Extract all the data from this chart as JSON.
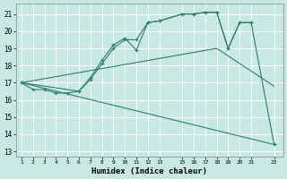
{
  "xlabel": "Humidex (Indice chaleur)",
  "bg_color": "#c8e8e4",
  "grid_color": "#b0d8d4",
  "line_color": "#2e7d6e",
  "xlim": [
    0.5,
    23.8
  ],
  "ylim": [
    12.7,
    21.6
  ],
  "xticks": [
    1,
    2,
    3,
    4,
    5,
    6,
    7,
    8,
    9,
    10,
    11,
    12,
    13,
    15,
    16,
    17,
    18,
    19,
    20,
    21,
    23
  ],
  "yticks": [
    13,
    14,
    15,
    16,
    17,
    18,
    19,
    20,
    21
  ],
  "line1_x": [
    1,
    2,
    3,
    4,
    5,
    6,
    7,
    8,
    9,
    10,
    11,
    12,
    13,
    15,
    16,
    17,
    18,
    19,
    20,
    21,
    23
  ],
  "line1_y": [
    17.0,
    16.6,
    16.6,
    16.4,
    16.4,
    16.5,
    17.3,
    18.3,
    19.2,
    19.6,
    18.9,
    20.5,
    20.6,
    21.0,
    21.0,
    21.1,
    21.1,
    19.0,
    20.5,
    20.5,
    13.4
  ],
  "line1_marker_x": [
    1,
    2,
    3,
    4,
    5,
    6,
    7,
    8,
    9,
    10,
    11,
    12,
    13,
    15,
    16,
    17,
    18,
    19,
    20,
    21,
    23
  ],
  "line1_marker_y": [
    17.0,
    16.6,
    16.6,
    16.4,
    16.4,
    16.5,
    17.3,
    18.3,
    19.2,
    19.6,
    18.9,
    20.5,
    20.6,
    21.0,
    21.0,
    21.1,
    21.1,
    19.0,
    20.5,
    20.5,
    13.4
  ],
  "line2_x": [
    1,
    6,
    7,
    8,
    9,
    10,
    11,
    12,
    13,
    15,
    16,
    17,
    18,
    19,
    20,
    21
  ],
  "line2_y": [
    17.0,
    16.5,
    17.2,
    18.1,
    19.0,
    19.5,
    19.5,
    20.5,
    20.6,
    21.0,
    21.0,
    21.1,
    21.1,
    19.0,
    20.5,
    20.5
  ],
  "line2_marker_x": [
    1,
    6,
    7,
    8,
    9,
    10,
    12,
    13,
    15,
    16,
    17,
    18,
    19,
    20,
    21
  ],
  "line2_marker_y": [
    17.0,
    16.5,
    17.2,
    18.1,
    19.0,
    19.5,
    20.5,
    20.6,
    21.0,
    21.0,
    21.1,
    21.1,
    19.0,
    20.5,
    20.5
  ],
  "line3_x": [
    1,
    18,
    23
  ],
  "line3_y": [
    17.0,
    19.0,
    16.8
  ],
  "line4_x": [
    1,
    23
  ],
  "line4_y": [
    17.0,
    13.4
  ],
  "lw": 0.8,
  "ms": 3.5
}
